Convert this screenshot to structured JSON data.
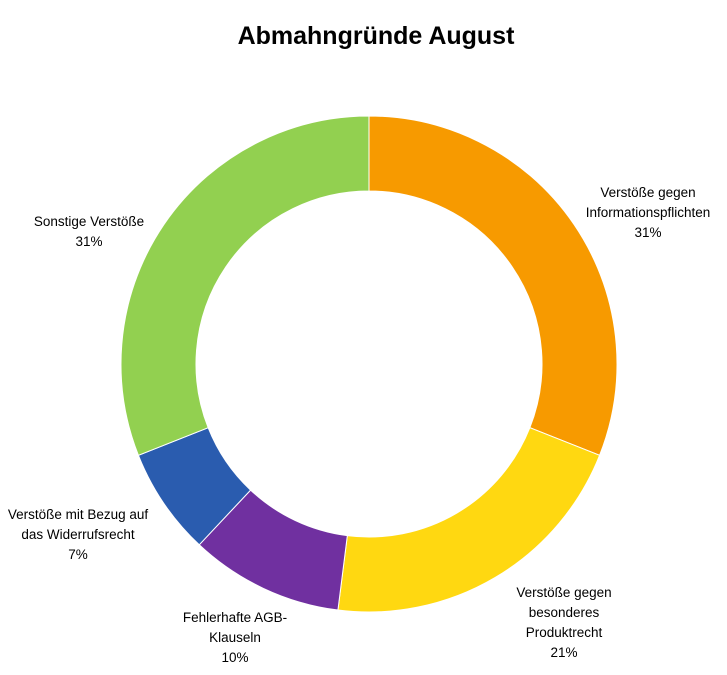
{
  "chart_data": {
    "type": "pie",
    "variant": "donut",
    "title": "Abmahngründe August",
    "legend": "none",
    "slices": [
      {
        "name": "Verstöße gegen Informationspflichten",
        "value": 31,
        "label_lines": [
          "Verstöße gegen",
          "Informationspflichten",
          "31%"
        ],
        "color": "#F79A00"
      },
      {
        "name": "Verstöße gegen besonderes Produktrecht",
        "value": 21,
        "label_lines": [
          "Verstöße gegen",
          "besonderes",
          "Produktrecht",
          "21%"
        ],
        "color": "#FFD811"
      },
      {
        "name": "Fehlerhafte AGB-Klauseln",
        "value": 10,
        "label_lines": [
          "Fehlerhafte AGB-",
          "Klauseln",
          "10%"
        ],
        "color": "#7030A0"
      },
      {
        "name": "Verstöße mit Bezug auf das Widerrufsrecht",
        "value": 7,
        "label_lines": [
          "Verstöße mit Bezug auf",
          "das Widerrufsrecht",
          "7%"
        ],
        "color": "#2A5CAF"
      },
      {
        "name": "Sonstige Verstöße",
        "value": 31,
        "label_lines": [
          "Sonstige Verstöße",
          "31%"
        ],
        "color": "#92D050"
      }
    ]
  }
}
